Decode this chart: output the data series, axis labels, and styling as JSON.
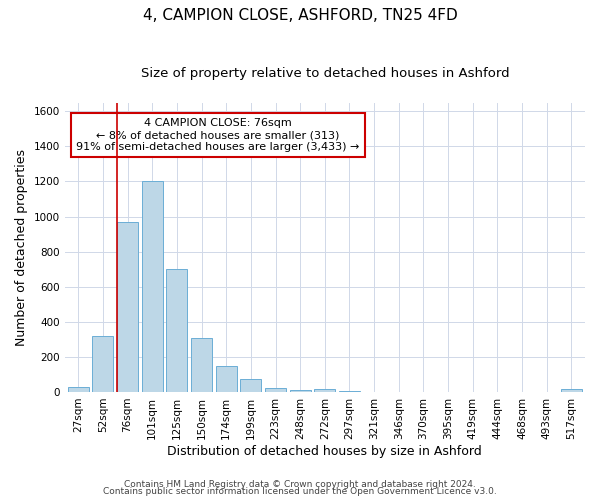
{
  "title": "4, CAMPION CLOSE, ASHFORD, TN25 4FD",
  "subtitle": "Size of property relative to detached houses in Ashford",
  "xlabel": "Distribution of detached houses by size in Ashford",
  "ylabel": "Number of detached properties",
  "bar_labels": [
    "27sqm",
    "52sqm",
    "76sqm",
    "101sqm",
    "125sqm",
    "150sqm",
    "174sqm",
    "199sqm",
    "223sqm",
    "248sqm",
    "272sqm",
    "297sqm",
    "321sqm",
    "346sqm",
    "370sqm",
    "395sqm",
    "419sqm",
    "444sqm",
    "468sqm",
    "493sqm",
    "517sqm"
  ],
  "bar_values": [
    30,
    320,
    970,
    1200,
    700,
    310,
    150,
    75,
    25,
    10,
    15,
    3,
    2,
    0,
    0,
    0,
    0,
    0,
    0,
    0,
    15
  ],
  "bar_color": "#bdd7e7",
  "bar_edge_color": "#6baed6",
  "highlight_bar_index": 2,
  "vline_color": "#cc0000",
  "ylim": [
    0,
    1650
  ],
  "yticks": [
    0,
    200,
    400,
    600,
    800,
    1000,
    1200,
    1400,
    1600
  ],
  "annotation_title": "4 CAMPION CLOSE: 76sqm",
  "annotation_line1": "← 8% of detached houses are smaller (313)",
  "annotation_line2": "91% of semi-detached houses are larger (3,433) →",
  "annotation_box_color": "#ffffff",
  "annotation_box_edge": "#cc0000",
  "footer1": "Contains HM Land Registry data © Crown copyright and database right 2024.",
  "footer2": "Contains public sector information licensed under the Open Government Licence v3.0.",
  "bg_color": "#ffffff",
  "grid_color": "#d0d8e8",
  "title_fontsize": 11,
  "subtitle_fontsize": 9.5,
  "axis_label_fontsize": 9,
  "tick_fontsize": 7.5,
  "ann_fontsize": 8,
  "footer_fontsize": 6.5
}
